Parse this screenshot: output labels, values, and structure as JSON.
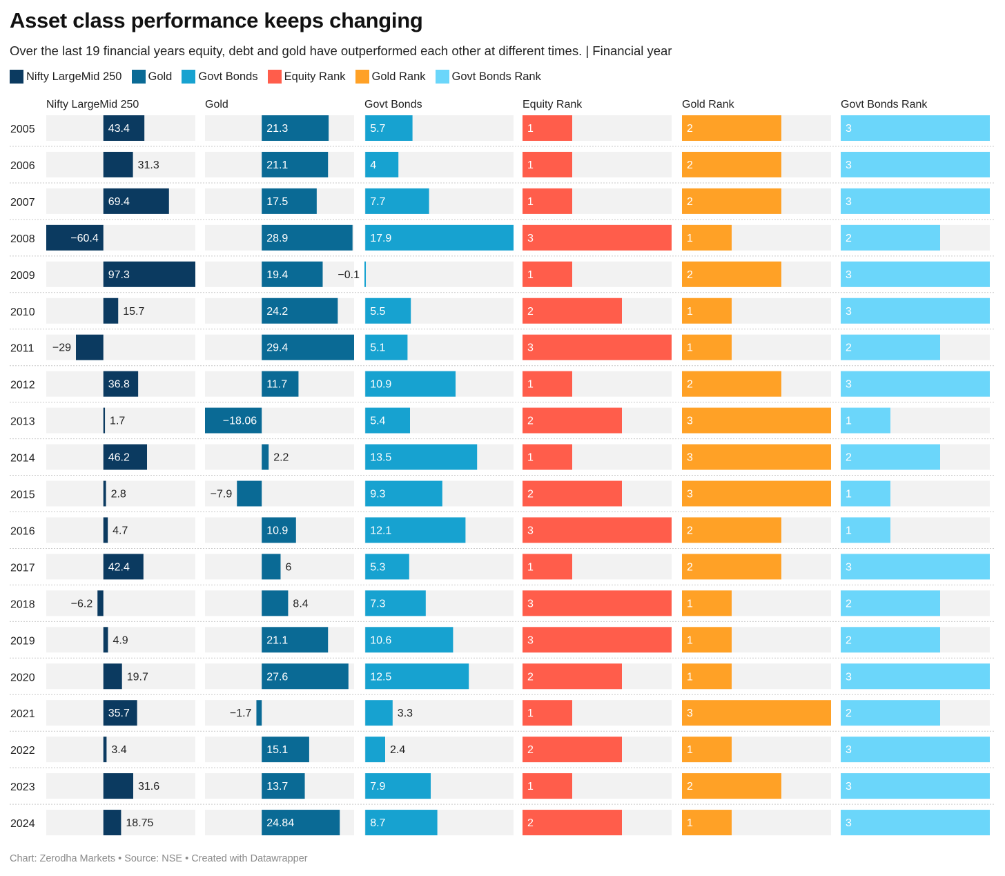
{
  "title": "Asset class performance keeps changing",
  "subtitle": "Over the last 19 financial years equity, debt and gold have outperformed each other at different times. | Financial year",
  "footer": "Chart: Zerodha Markets • Source: NSE • Created with Datawrapper",
  "legend": [
    {
      "label": "Nifty LargeMid 250",
      "color": "#0b3a60"
    },
    {
      "label": "Gold",
      "color": "#0a6a95"
    },
    {
      "label": "Govt Bonds",
      "color": "#17a2d0"
    },
    {
      "label": "Equity Rank",
      "color": "#ff5d4b"
    },
    {
      "label": "Gold Rank",
      "color": "#ffa126"
    },
    {
      "label": "Govt Bonds Rank",
      "color": "#6bd6fa"
    }
  ],
  "chart_data": {
    "type": "bar",
    "categories": [
      "2005",
      "2006",
      "2007",
      "2008",
      "2009",
      "2010",
      "2011",
      "2012",
      "2013",
      "2014",
      "2015",
      "2016",
      "2017",
      "2018",
      "2019",
      "2020",
      "2021",
      "2022",
      "2023",
      "2024"
    ],
    "series": [
      {
        "name": "Nifty LargeMid 250",
        "color": "#0b3a60",
        "domain": [
          -60.4,
          97.3
        ],
        "values": [
          43.4,
          31.3,
          69.4,
          -60.4,
          97.3,
          15.7,
          -29,
          36.8,
          1.7,
          46.2,
          2.8,
          4.7,
          42.4,
          -6.2,
          4.9,
          19.7,
          35.7,
          3.4,
          31.6,
          18.75
        ]
      },
      {
        "name": "Gold",
        "color": "#0a6a95",
        "domain": [
          -18.06,
          29.4
        ],
        "values": [
          21.3,
          21.1,
          17.5,
          28.9,
          19.4,
          24.2,
          29.4,
          11.7,
          -18.06,
          2.2,
          -7.9,
          10.9,
          6,
          8.4,
          21.1,
          27.6,
          -1.7,
          15.1,
          13.7,
          24.84
        ]
      },
      {
        "name": "Govt Bonds",
        "color": "#17a2d0",
        "domain": [
          -0.1,
          17.9
        ],
        "values": [
          5.7,
          4,
          7.7,
          17.9,
          -0.1,
          5.5,
          5.1,
          10.9,
          5.4,
          13.5,
          9.3,
          12.1,
          5.3,
          7.3,
          10.6,
          12.5,
          3.3,
          2.4,
          7.9,
          8.7
        ]
      },
      {
        "name": "Equity Rank",
        "color": "#ff5d4b",
        "domain": [
          0,
          3
        ],
        "values": [
          1,
          1,
          1,
          3,
          1,
          2,
          3,
          1,
          2,
          1,
          2,
          3,
          1,
          3,
          3,
          2,
          1,
          2,
          1,
          2
        ]
      },
      {
        "name": "Gold Rank",
        "color": "#ffa126",
        "domain": [
          0,
          3
        ],
        "values": [
          2,
          2,
          2,
          1,
          2,
          1,
          1,
          2,
          3,
          3,
          3,
          2,
          2,
          1,
          1,
          1,
          3,
          1,
          2,
          1
        ]
      },
      {
        "name": "Govt Bonds Rank",
        "color": "#6bd6fa",
        "domain": [
          0,
          3
        ],
        "values": [
          3,
          3,
          3,
          2,
          3,
          3,
          2,
          3,
          1,
          2,
          1,
          1,
          3,
          2,
          2,
          3,
          2,
          3,
          3,
          3
        ]
      }
    ],
    "value_labels": [
      [
        "43.4",
        "31.3",
        "69.4",
        "−60.4",
        "97.3",
        "15.7",
        "−29",
        "36.8",
        "1.7",
        "46.2",
        "2.8",
        "4.7",
        "42.4",
        "−6.2",
        "4.9",
        "19.7",
        "35.7",
        "3.4",
        "31.6",
        "18.75"
      ],
      [
        "21.3",
        "21.1",
        "17.5",
        "28.9",
        "19.4",
        "24.2",
        "29.4",
        "11.7",
        "−18.06",
        "2.2",
        "−7.9",
        "10.9",
        "6",
        "8.4",
        "21.1",
        "27.6",
        "−1.7",
        "15.1",
        "13.7",
        "24.84"
      ],
      [
        "5.7",
        "4",
        "7.7",
        "17.9",
        "−0.1",
        "5.5",
        "5.1",
        "10.9",
        "5.4",
        "13.5",
        "9.3",
        "12.1",
        "5.3",
        "7.3",
        "10.6",
        "12.5",
        "3.3",
        "2.4",
        "7.9",
        "8.7"
      ],
      [
        "1",
        "1",
        "1",
        "3",
        "1",
        "2",
        "3",
        "1",
        "2",
        "1",
        "2",
        "3",
        "1",
        "3",
        "3",
        "2",
        "1",
        "2",
        "1",
        "2"
      ],
      [
        "2",
        "2",
        "2",
        "1",
        "2",
        "1",
        "1",
        "2",
        "3",
        "3",
        "3",
        "2",
        "2",
        "1",
        "1",
        "1",
        "3",
        "1",
        "2",
        "1"
      ],
      [
        "3",
        "3",
        "3",
        "2",
        "3",
        "3",
        "2",
        "3",
        "1",
        "2",
        "1",
        "1",
        "3",
        "2",
        "2",
        "3",
        "2",
        "3",
        "3",
        "3"
      ]
    ],
    "background_track_color": "#f2f2f2",
    "grid": false,
    "legend_position": "top-left"
  }
}
